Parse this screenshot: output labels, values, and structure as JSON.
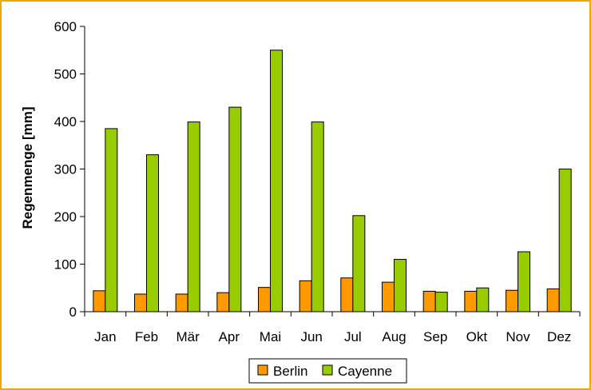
{
  "chart_data": {
    "type": "bar",
    "title": "",
    "xlabel": "",
    "ylabel": "Regenmenge [mm]",
    "ylim": [
      0,
      600
    ],
    "yticks": [
      0,
      100,
      200,
      300,
      400,
      500,
      600
    ],
    "grid": false,
    "legend_position": "bottom",
    "categories": [
      "Jan",
      "Feb",
      "Mär",
      "Apr",
      "Mai",
      "Jun",
      "Jul",
      "Aug",
      "Sep",
      "Okt",
      "Nov",
      "Dez"
    ],
    "series": [
      {
        "name": "Berlin",
        "color": "#ff9900",
        "values": [
          44,
          37,
          37,
          40,
          51,
          65,
          71,
          62,
          43,
          43,
          45,
          48
        ]
      },
      {
        "name": "Cayenne",
        "color": "#99cc00",
        "values": [
          385,
          330,
          399,
          430,
          550,
          399,
          202,
          110,
          41,
          50,
          126,
          300
        ]
      }
    ]
  }
}
